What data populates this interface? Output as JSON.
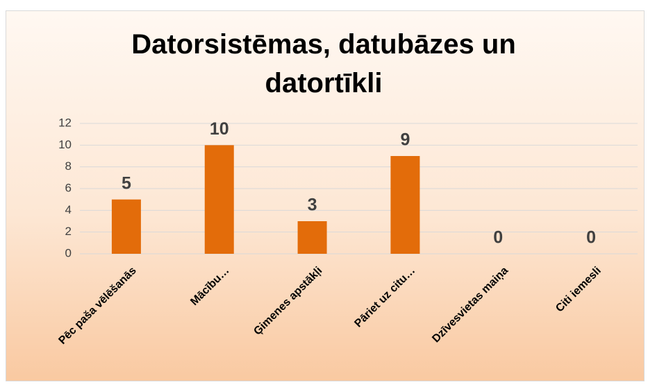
{
  "chart_data": {
    "type": "bar",
    "title": "Datorsistēmas, datubāzes un datortīkli",
    "categories": [
      "Pēc paša vēlēšanās",
      "Mācību…",
      "Ģimenes apstākļi",
      "Pāriet uz citu…",
      "Dzīvesvietas maiņa",
      "Citi iemesli"
    ],
    "values": [
      5,
      10,
      3,
      9,
      0,
      0
    ],
    "color": "#e36c0a",
    "ylim": [
      0,
      12
    ],
    "yticks": [
      0,
      2,
      4,
      6,
      8,
      10,
      12
    ],
    "grid": true
  }
}
